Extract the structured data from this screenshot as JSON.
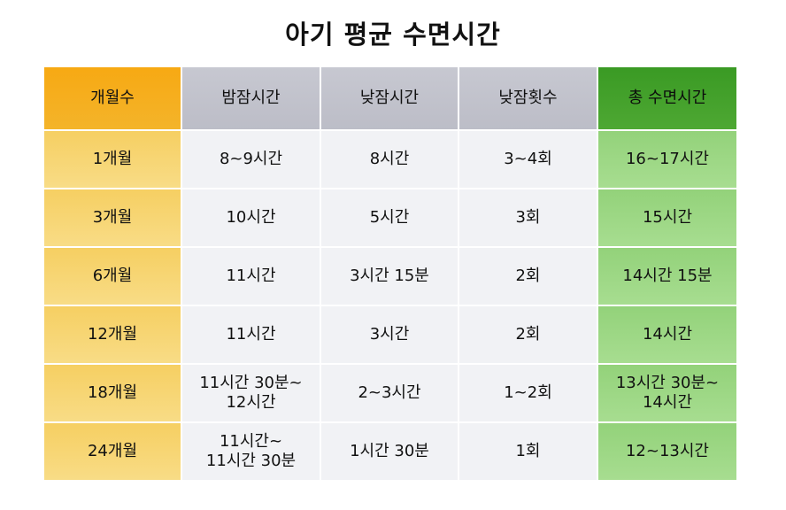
{
  "title": "아기 평균 수면시간",
  "table": {
    "headers": [
      "개월수",
      "밤잠시간",
      "낮잠시간",
      "낮잠횟수",
      "총 수면시간"
    ],
    "rows": [
      [
        "1개월",
        "8~9시간",
        "8시간",
        "3~4회",
        "16~17시간"
      ],
      [
        "3개월",
        "10시간",
        "5시간",
        "3회",
        "15시간"
      ],
      [
        "6개월",
        "11시간",
        "3시간 15분",
        "2회",
        "14시간 15분"
      ],
      [
        "12개월",
        "11시간",
        "3시간",
        "2회",
        "14시간"
      ],
      [
        "18개월",
        "11시간 30분~\n12시간",
        "2~3시간",
        "1~2회",
        "13시간 30분~\n14시간"
      ],
      [
        "24개월",
        "11시간~\n11시간 30분",
        "1시간 30분",
        "1회",
        "12~13시간"
      ]
    ]
  },
  "colors": {
    "age_header": "#f7a913",
    "age_cells": "#f8d875",
    "mid_header": "#c4c5cf",
    "mid_cells": "#f1f2f5",
    "total_header": "#3f9e28",
    "total_cells": "#9ed886"
  }
}
